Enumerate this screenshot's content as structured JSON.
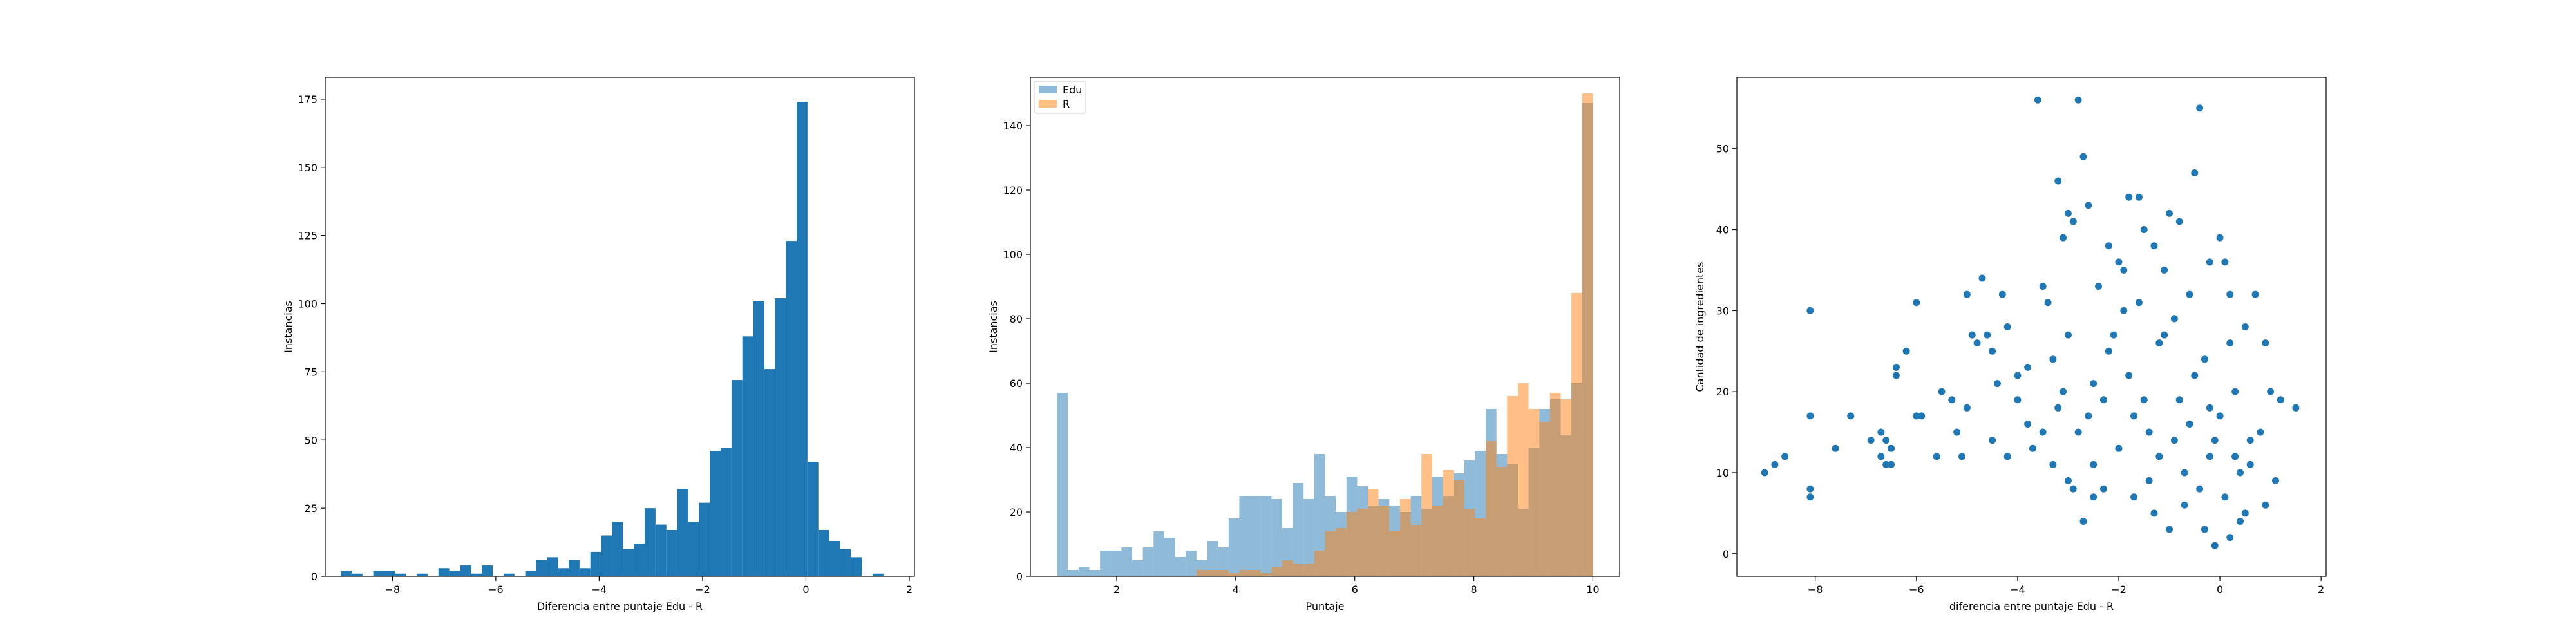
{
  "chart_data": [
    {
      "type": "bar",
      "subtype": "histogram",
      "xlabel": "Diferencia entre puntaje Edu - R",
      "ylabel": "Instancias",
      "xlim": [
        -9.3,
        2.1
      ],
      "ylim": [
        0,
        183
      ],
      "xticks": [
        -8,
        -6,
        -4,
        -2,
        0,
        2
      ],
      "xtick_labels": [
        "−8",
        "−6",
        "−4",
        "−2",
        "0",
        "2"
      ],
      "yticks": [
        0,
        25,
        50,
        75,
        100,
        125,
        150,
        175
      ],
      "ytick_labels": [
        "0",
        "25",
        "50",
        "75",
        "100",
        "125",
        "150",
        "175"
      ],
      "bin_edges": [
        -9.0,
        -8.79,
        -8.58,
        -8.37,
        -8.16,
        -7.95,
        -7.74,
        -7.53,
        -7.32,
        -7.11,
        -6.9,
        -6.69,
        -6.48,
        -6.27,
        -6.06,
        -5.85,
        -5.64,
        -5.43,
        -5.22,
        -5.01,
        -4.8,
        -4.59,
        -4.38,
        -4.17,
        -3.96,
        -3.75,
        -3.54,
        -3.33,
        -3.12,
        -2.91,
        -2.7,
        -2.49,
        -2.28,
        -2.07,
        -1.86,
        -1.65,
        -1.44,
        -1.23,
        -1.02,
        -0.81,
        -0.6,
        -0.39,
        -0.18,
        0.03,
        0.24,
        0.45,
        0.66,
        0.87,
        1.08,
        1.29,
        1.5
      ],
      "counts": [
        2,
        1,
        0,
        2,
        2,
        1,
        0,
        1,
        0,
        3,
        2,
        4,
        1,
        4,
        0,
        1,
        0,
        2,
        6,
        7,
        3,
        6,
        3,
        9,
        15,
        20,
        10,
        12,
        25,
        19,
        17,
        32,
        20,
        27,
        46,
        47,
        72,
        88,
        101,
        76,
        102,
        123,
        174,
        42,
        17,
        13,
        10,
        7,
        0,
        1
      ],
      "color": "#1f77b4"
    },
    {
      "type": "bar",
      "subtype": "histogram",
      "xlabel": "Puntaje",
      "ylabel": "Instancias",
      "xlim": [
        0.55,
        10.45
      ],
      "ylim": [
        0,
        155
      ],
      "xticks": [
        2,
        4,
        6,
        8,
        10
      ],
      "xtick_labels": [
        "2",
        "4",
        "6",
        "8",
        "10"
      ],
      "yticks": [
        0,
        20,
        40,
        60,
        80,
        100,
        120,
        140
      ],
      "ytick_labels": [
        "0",
        "20",
        "40",
        "60",
        "80",
        "100",
        "120",
        "140"
      ],
      "legend_position": "upper-left",
      "bin_start": 1.0,
      "bin_width": 0.18,
      "series": [
        {
          "name": "Edu",
          "color": "#1f77b4",
          "alpha": 0.5,
          "counts": [
            57,
            2,
            3,
            2,
            8,
            8,
            9,
            5,
            9,
            14,
            12,
            6,
            8,
            5,
            11,
            9,
            18,
            25,
            25,
            25,
            24,
            15,
            29,
            24,
            38,
            25,
            20,
            31,
            28,
            22,
            24,
            22,
            20,
            25,
            21,
            31,
            25,
            32,
            36,
            39,
            52,
            38,
            35,
            21,
            40,
            52,
            55,
            44,
            60,
            147
          ]
        },
        {
          "name": "R",
          "color": "#ff7f0e",
          "alpha": 0.5,
          "counts": [
            0,
            0,
            0,
            0,
            0,
            0,
            0,
            0,
            0,
            0,
            0,
            0,
            0,
            2,
            2,
            2,
            1,
            2,
            2,
            1,
            3,
            5,
            4,
            4,
            8,
            14,
            15,
            20,
            21,
            27,
            22,
            14,
            24,
            16,
            38,
            22,
            33,
            30,
            21,
            18,
            42,
            34,
            56,
            60,
            52,
            48,
            57,
            55,
            88,
            150
          ]
        }
      ]
    },
    {
      "type": "scatter",
      "xlabel": "diferencia entre puntaje Edu - R",
      "ylabel": "Cantidad de ingredientes",
      "xlim": [
        -9.55,
        2.1
      ],
      "ylim": [
        -2.8,
        58.8
      ],
      "xticks": [
        -8,
        -6,
        -4,
        -2,
        0,
        2
      ],
      "xtick_labels": [
        "−8",
        "−6",
        "−4",
        "−2",
        "0",
        "2"
      ],
      "yticks": [
        0,
        10,
        20,
        30,
        40,
        50
      ],
      "ytick_labels": [
        "0",
        "10",
        "20",
        "30",
        "40",
        "50"
      ],
      "color": "#1f77b4",
      "points": [
        [
          -9.0,
          10
        ],
        [
          -8.8,
          11
        ],
        [
          -8.6,
          12
        ],
        [
          -8.1,
          30
        ],
        [
          -8.1,
          8
        ],
        [
          -8.1,
          7
        ],
        [
          -8.1,
          17
        ],
        [
          -7.6,
          13
        ],
        [
          -7.3,
          17
        ],
        [
          -6.9,
          14
        ],
        [
          -6.7,
          15
        ],
        [
          -6.7,
          12
        ],
        [
          -6.6,
          11
        ],
        [
          -6.6,
          14
        ],
        [
          -6.5,
          13
        ],
        [
          -6.5,
          11
        ],
        [
          -6.4,
          22
        ],
        [
          -6.4,
          23
        ],
        [
          -6.2,
          25
        ],
        [
          -6.0,
          31
        ],
        [
          -6.0,
          17
        ],
        [
          -5.9,
          17
        ],
        [
          -5.6,
          12
        ],
        [
          -5.5,
          20
        ],
        [
          -5.3,
          19
        ],
        [
          -5.2,
          15
        ],
        [
          -5.1,
          12
        ],
        [
          -5.0,
          32
        ],
        [
          -5.0,
          18
        ],
        [
          -4.9,
          27
        ],
        [
          -4.8,
          26
        ],
        [
          -4.7,
          34
        ],
        [
          -4.6,
          27
        ],
        [
          -4.5,
          25
        ],
        [
          -4.4,
          21
        ],
        [
          -4.3,
          32
        ],
        [
          -4.2,
          28
        ],
        [
          -4.0,
          22
        ],
        [
          -3.8,
          23
        ],
        [
          -3.6,
          56
        ],
        [
          -3.5,
          33
        ],
        [
          -3.4,
          31
        ],
        [
          -3.2,
          46
        ],
        [
          -3.1,
          39
        ],
        [
          -3.0,
          42
        ],
        [
          -2.9,
          41
        ],
        [
          -2.8,
          56
        ],
        [
          -2.7,
          49
        ],
        [
          -2.6,
          43
        ],
        [
          -2.9,
          8
        ],
        [
          -2.7,
          4
        ],
        [
          -3.7,
          13
        ],
        [
          -3.3,
          11
        ],
        [
          -3.0,
          9
        ],
        [
          -2.5,
          7
        ],
        [
          -2.2,
          38
        ],
        [
          -2.0,
          36
        ],
        [
          -1.8,
          44
        ],
        [
          -1.6,
          44
        ],
        [
          -1.5,
          40
        ],
        [
          -1.3,
          38
        ],
        [
          -1.1,
          35
        ],
        [
          -1.0,
          42
        ],
        [
          -0.8,
          41
        ],
        [
          -0.4,
          55
        ],
        [
          -0.5,
          47
        ],
        [
          -0.2,
          36
        ],
        [
          0.0,
          39
        ],
        [
          0.1,
          36
        ],
        [
          0.2,
          32
        ],
        [
          0.5,
          28
        ],
        [
          0.7,
          32
        ],
        [
          0.9,
          26
        ],
        [
          1.0,
          20
        ],
        [
          1.2,
          19
        ],
        [
          1.5,
          18
        ],
        [
          1.1,
          9
        ],
        [
          0.9,
          6
        ],
        [
          -4.5,
          14
        ],
        [
          -4.2,
          12
        ],
        [
          -4.0,
          19
        ],
        [
          -3.8,
          16
        ],
        [
          -3.5,
          15
        ],
        [
          -3.2,
          18
        ],
        [
          -3.0,
          27
        ],
        [
          -2.5,
          21
        ],
        [
          -2.2,
          25
        ],
        [
          -1.9,
          30
        ],
        [
          -1.7,
          17
        ],
        [
          -1.4,
          9
        ],
        [
          -1.2,
          12
        ],
        [
          -0.9,
          14
        ],
        [
          -0.7,
          6
        ],
        [
          -0.3,
          3
        ],
        [
          -0.1,
          1
        ],
        [
          0.2,
          2
        ],
        [
          0.4,
          4
        ],
        [
          0.6,
          11
        ],
        [
          0.8,
          15
        ],
        [
          -2.4,
          33
        ],
        [
          -2.1,
          27
        ],
        [
          -1.8,
          22
        ],
        [
          -1.5,
          19
        ],
        [
          -1.2,
          26
        ],
        [
          -0.9,
          29
        ],
        [
          -0.6,
          32
        ],
        [
          -0.3,
          24
        ],
        [
          0.0,
          17
        ],
        [
          0.3,
          20
        ],
        [
          0.6,
          14
        ],
        [
          -3.3,
          24
        ],
        [
          -3.1,
          20
        ],
        [
          -2.8,
          15
        ],
        [
          -2.5,
          11
        ],
        [
          -2.3,
          8
        ],
        [
          -2.0,
          13
        ],
        [
          -1.7,
          7
        ],
        [
          -1.3,
          5
        ],
        [
          -1.0,
          3
        ],
        [
          -0.7,
          10
        ],
        [
          -0.4,
          8
        ],
        [
          -0.2,
          12
        ],
        [
          0.1,
          7
        ],
        [
          0.4,
          10
        ],
        [
          -1.9,
          35
        ],
        [
          -1.6,
          31
        ],
        [
          -1.1,
          27
        ],
        [
          -0.5,
          22
        ],
        [
          -0.2,
          18
        ],
        [
          0.2,
          26
        ],
        [
          -2.6,
          17
        ],
        [
          -2.3,
          19
        ],
        [
          -1.4,
          15
        ],
        [
          -0.8,
          19
        ],
        [
          -0.6,
          16
        ],
        [
          -0.1,
          14
        ],
        [
          0.3,
          12
        ],
        [
          0.5,
          5
        ]
      ]
    }
  ]
}
